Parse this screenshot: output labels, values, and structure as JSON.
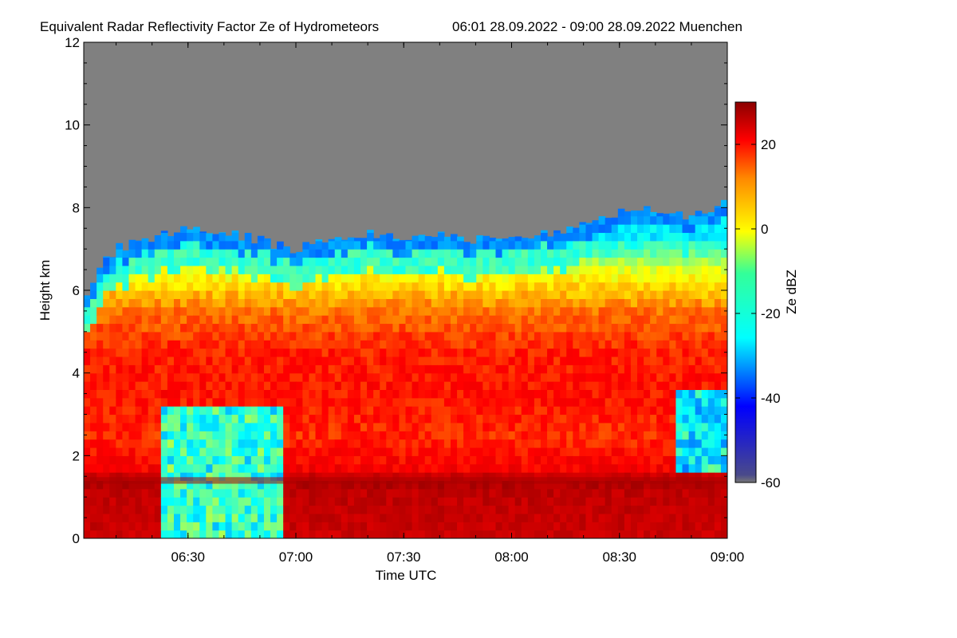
{
  "chart_data": {
    "type": "heatmap",
    "title": "Equivalent Radar Reflectivity Factor Ze of Hydrometeors",
    "subtitle": "06:01 28.09.2022 - 09:00 28.09.2022 Muenchen",
    "xlabel": "Time UTC",
    "ylabel": "Height km",
    "xlim": [
      "06:01",
      "09:00"
    ],
    "xticks": [
      "06:30",
      "07:00",
      "07:30",
      "08:00",
      "08:30",
      "09:00"
    ],
    "ylim": [
      0,
      12
    ],
    "yticks": [
      "0",
      "2",
      "4",
      "6",
      "8",
      "10",
      "12"
    ],
    "colorbar": {
      "label": "Ze dBZ",
      "range": [
        -60,
        30
      ],
      "ticks": [
        "-60",
        "-40",
        "-20",
        "0",
        "20"
      ],
      "colors": [
        "#777777",
        "#0000ff",
        "#00ffff",
        "#ffff00",
        "#ff0000",
        "#8b0000"
      ],
      "no_signal_color": "#808080"
    },
    "echo_top_km": [
      {
        "time": "06:01",
        "height": 5.7
      },
      {
        "time": "06:05",
        "height": 6.5
      },
      {
        "time": "06:10",
        "height": 7.0
      },
      {
        "time": "06:20",
        "height": 7.3
      },
      {
        "time": "06:30",
        "height": 7.5
      },
      {
        "time": "06:40",
        "height": 7.4
      },
      {
        "time": "06:50",
        "height": 7.2
      },
      {
        "time": "07:00",
        "height": 7.0
      },
      {
        "time": "07:10",
        "height": 7.3
      },
      {
        "time": "07:20",
        "height": 7.4
      },
      {
        "time": "07:30",
        "height": 7.2
      },
      {
        "time": "07:40",
        "height": 7.3
      },
      {
        "time": "07:50",
        "height": 7.2
      },
      {
        "time": "08:00",
        "height": 7.3
      },
      {
        "time": "08:10",
        "height": 7.4
      },
      {
        "time": "08:20",
        "height": 7.6
      },
      {
        "time": "08:30",
        "height": 7.9
      },
      {
        "time": "08:40",
        "height": 8.0
      },
      {
        "time": "08:50",
        "height": 7.8
      },
      {
        "time": "09:00",
        "height": 8.1
      }
    ],
    "profile_dbz": [
      {
        "height": 0.0,
        "dbz": 20
      },
      {
        "height": 1.2,
        "dbz": 22
      },
      {
        "height": 1.4,
        "dbz": 26
      },
      {
        "height": 1.6,
        "dbz": 14
      },
      {
        "height": 2.5,
        "dbz": 9
      },
      {
        "height": 3.5,
        "dbz": 11
      },
      {
        "height": 4.5,
        "dbz": 10
      },
      {
        "height": 5.5,
        "dbz": 4
      },
      {
        "height": 6.5,
        "dbz": -8
      },
      {
        "height": 7.3,
        "dbz": -25
      }
    ],
    "features": [
      {
        "kind": "melting_layer",
        "height_km": 1.4,
        "dbz": 26
      },
      {
        "kind": "dry_gap",
        "time_start": "06:22",
        "time_end": "06:56",
        "height_range_km": [
          0,
          3.2
        ],
        "dbz": -20
      },
      {
        "kind": "weak_echo",
        "time_start": "08:45",
        "time_end": "09:00",
        "height_range_km": [
          1.6,
          3.6
        ],
        "dbz": -25
      }
    ]
  }
}
